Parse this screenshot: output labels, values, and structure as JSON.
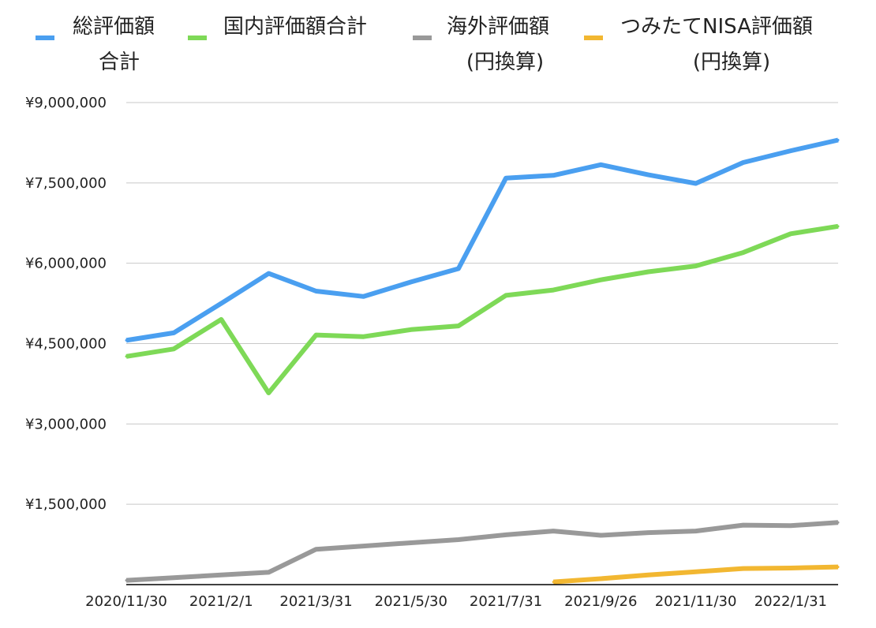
{
  "chart_data": {
    "type": "line",
    "ylim": [
      0,
      9000000
    ],
    "y_ticks": [
      "¥1,500,000",
      "¥3,000,000",
      "¥4,500,000",
      "¥6,000,000",
      "¥7,500,000",
      "¥9,000,000"
    ],
    "y_tick_values": [
      1500000,
      3000000,
      4500000,
      6000000,
      7500000,
      9000000
    ],
    "x_tick_labels": [
      "2020/11/30",
      "2021/2/1",
      "2021/3/31",
      "2021/5/30",
      "2021/7/31",
      "2021/9/26",
      "2021/11/30",
      "2022/1/31"
    ],
    "x_tick_positions": [
      0,
      2,
      4,
      6,
      8,
      10,
      12,
      14
    ],
    "x_count": 16,
    "grid": true,
    "legend_position": "top",
    "series": [
      {
        "name": "総評価額合計",
        "legend_lines": [
          "総評価額",
          "合計"
        ],
        "color": "#4a9ff0",
        "values": [
          4560000,
          4700000,
          5250000,
          5810000,
          5480000,
          5380000,
          5650000,
          5900000,
          7590000,
          7640000,
          7840000,
          7650000,
          7490000,
          7880000,
          8100000,
          8300000
        ]
      },
      {
        "name": "国内評価額合計",
        "legend_lines": [
          "国内評価額合計"
        ],
        "color": "#7ed957",
        "values": [
          4260000,
          4400000,
          4950000,
          3580000,
          4660000,
          4630000,
          4760000,
          4830000,
          5400000,
          5500000,
          5690000,
          5840000,
          5950000,
          6200000,
          6550000,
          6690000
        ]
      },
      {
        "name": "海外評価額(円換算)",
        "legend_lines": [
          "海外評価額",
          "(円換算)"
        ],
        "color": "#999999",
        "values": [
          80000,
          130000,
          180000,
          230000,
          660000,
          720000,
          780000,
          840000,
          930000,
          1000000,
          920000,
          970000,
          1000000,
          1110000,
          1100000,
          1160000
        ]
      },
      {
        "name": "つみたてNISA評価額(円換算)",
        "legend_lines": [
          "つみたてNISA評価額",
          "(円換算)"
        ],
        "color": "#f2b731",
        "values": [
          null,
          null,
          null,
          null,
          null,
          null,
          null,
          null,
          null,
          50000,
          110000,
          180000,
          240000,
          300000,
          310000,
          330000
        ]
      }
    ]
  }
}
